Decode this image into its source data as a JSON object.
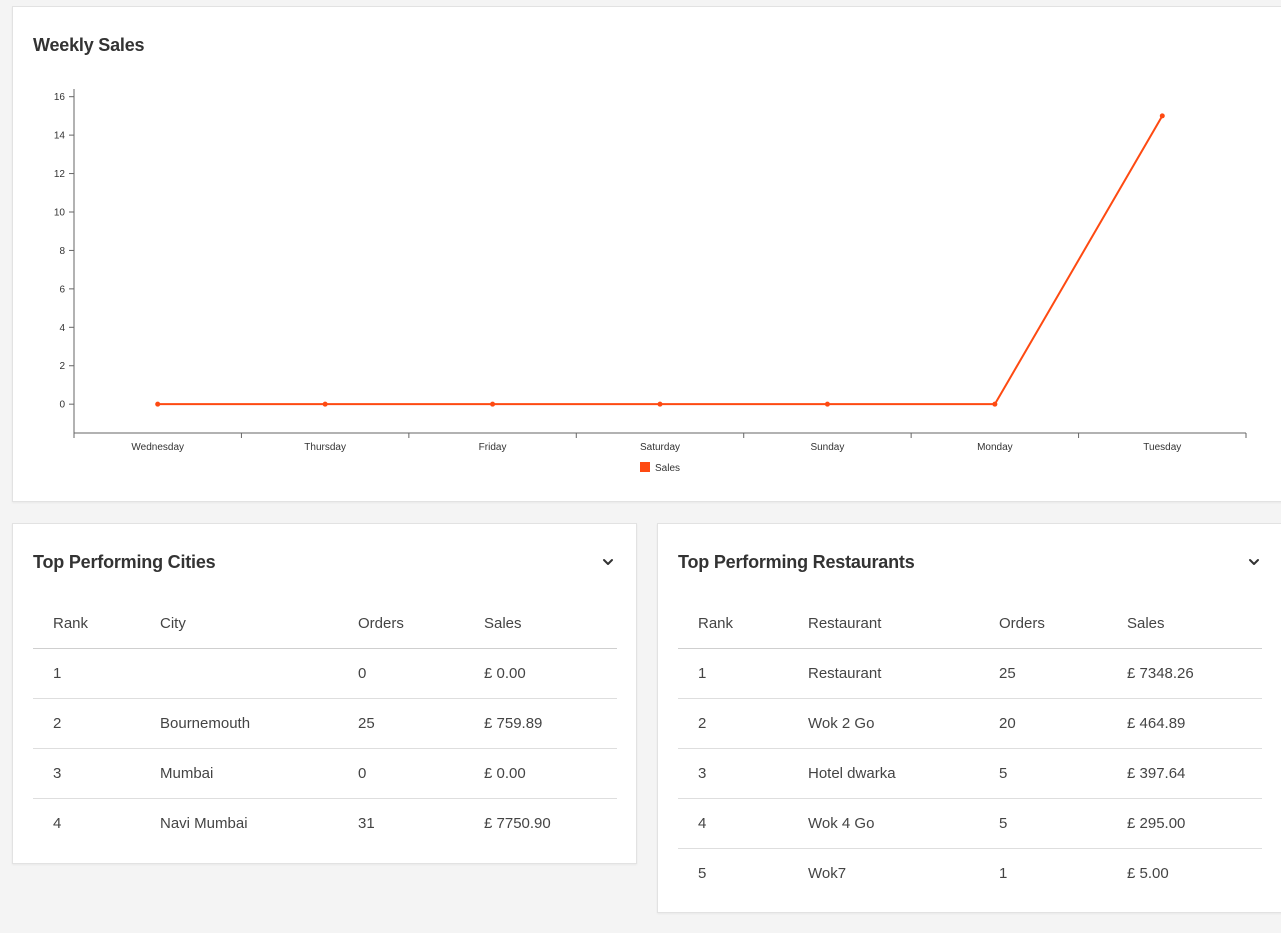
{
  "weekly_sales": {
    "title": "Weekly Sales"
  },
  "chart_data": {
    "type": "line",
    "categories": [
      "Wednesday",
      "Thursday",
      "Friday",
      "Saturday",
      "Sunday",
      "Monday",
      "Tuesday"
    ],
    "series": [
      {
        "name": "Sales",
        "values": [
          0,
          0,
          0,
          0,
          0,
          0,
          15
        ],
        "color": "#fe4a12"
      }
    ],
    "yticks": [
      0,
      2,
      4,
      6,
      8,
      10,
      12,
      14,
      16
    ],
    "ylim": [
      -1.5,
      16.4
    ],
    "grid": false,
    "legend": "bottom-center"
  },
  "cities": {
    "title": "Top Performing Cities",
    "columns": [
      "Rank",
      "City",
      "Orders",
      "Sales"
    ],
    "rows": [
      [
        "1",
        "",
        "0",
        "£ 0.00"
      ],
      [
        "2",
        "Bournemouth",
        "25",
        "£ 759.89"
      ],
      [
        "3",
        "Mumbai",
        "0",
        "£ 0.00"
      ],
      [
        "4",
        "Navi Mumbai",
        "31",
        "£ 7750.90"
      ]
    ]
  },
  "restaurants": {
    "title": "Top Performing Restaurants",
    "columns": [
      "Rank",
      "Restaurant",
      "Orders",
      "Sales"
    ],
    "rows": [
      [
        "1",
        "Restaurant",
        "25",
        "£ 7348.26"
      ],
      [
        "2",
        "Wok 2 Go",
        "20",
        "£ 464.89"
      ],
      [
        "3",
        "Hotel dwarka",
        "5",
        "£ 397.64"
      ],
      [
        "4",
        "Wok 4 Go",
        "5",
        "£ 295.00"
      ],
      [
        "5",
        "Wok7",
        "1",
        "£ 5.00"
      ]
    ]
  },
  "icons": {
    "collapse": "chevron-down-icon"
  }
}
